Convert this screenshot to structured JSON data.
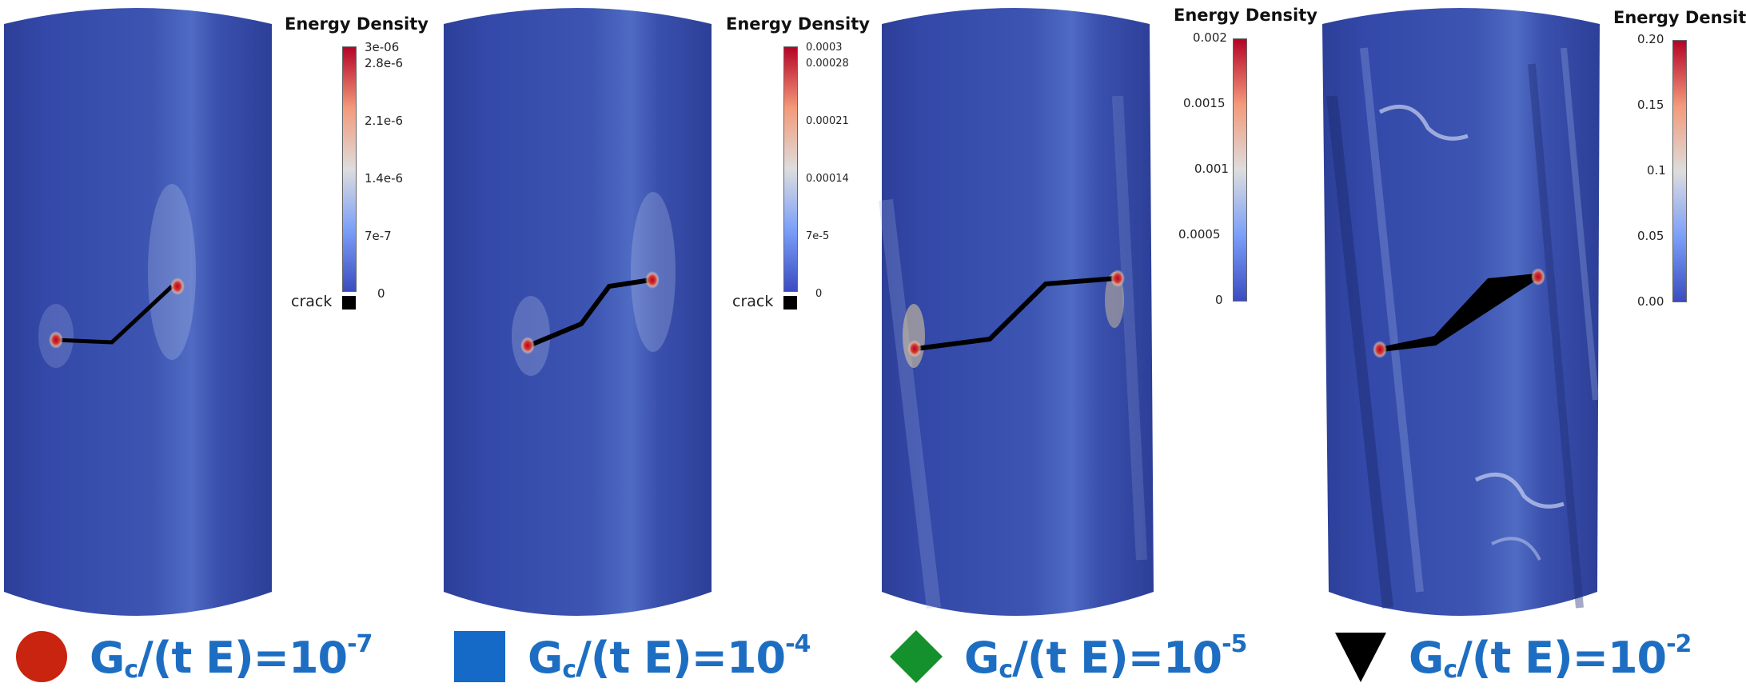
{
  "panels": [
    {
      "legend_title": "Energy Density",
      "ticks": [
        "3e-06",
        "2.8e-6",
        "2.1e-6",
        "1.4e-6",
        "7e-7",
        "0"
      ],
      "crack_label": "crack",
      "caption": {
        "marker": "circle-icon",
        "color": "#c8240f",
        "exponent": "-7"
      }
    },
    {
      "legend_title": "Energy Density",
      "ticks": [
        "0.0003",
        "0.00028",
        "0.00021",
        "0.00014",
        "7e-5",
        "0"
      ],
      "crack_label": "crack",
      "caption": {
        "marker": "square-icon",
        "color": "#1569c7",
        "exponent": "-4"
      }
    },
    {
      "legend_title": "Energy Density",
      "ticks": [
        "0.002",
        "0.0015",
        "0.001",
        "0.0005",
        "0"
      ],
      "caption": {
        "marker": "diamond-icon",
        "color": "#14902c",
        "exponent": "-5"
      }
    },
    {
      "legend_title": "Energy Density",
      "ticks": [
        "0.20",
        "0.15",
        "0.1",
        "0.05",
        "0.00"
      ],
      "caption": {
        "marker": "triangle-down-icon",
        "color": "#000000",
        "exponent": "-2"
      }
    }
  ],
  "caption_base": {
    "g": "G",
    "sub": "c",
    "rest": "/(t E)=10"
  },
  "colors": {
    "cylinder": "#3148a6",
    "caption_text": "#1d6ec2",
    "crack": "#000000",
    "hot": "#b40426"
  }
}
